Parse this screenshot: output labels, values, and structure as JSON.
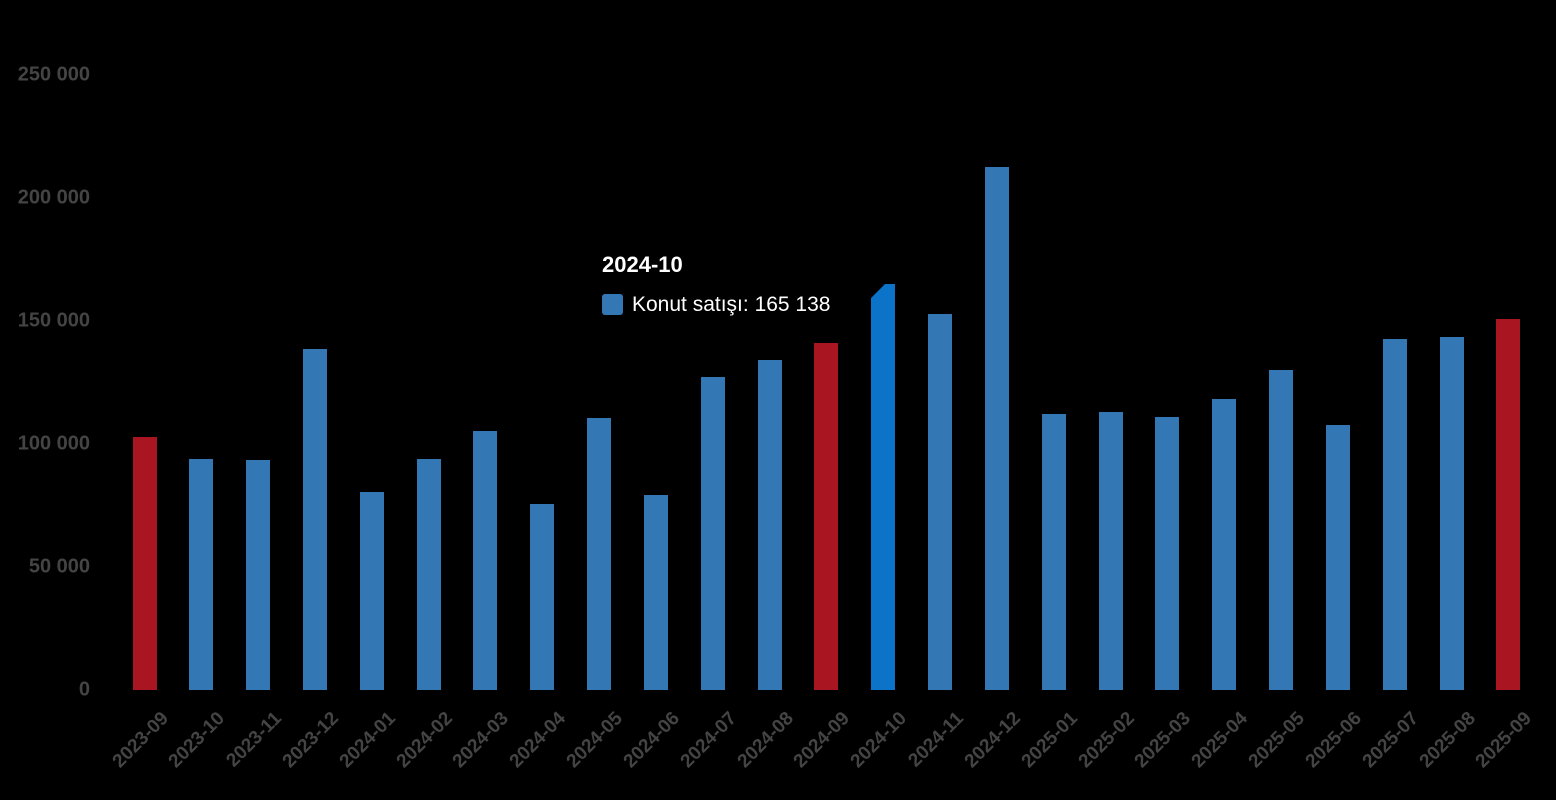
{
  "chart_data": {
    "type": "bar",
    "title": "",
    "xlabel": "",
    "ylabel": "",
    "categories": [
      "2023-09",
      "2023-10",
      "2023-11",
      "2023-12",
      "2024-01",
      "2024-02",
      "2024-03",
      "2024-04",
      "2024-05",
      "2024-06",
      "2024-07",
      "2024-08",
      "2024-09",
      "2024-10",
      "2024-11",
      "2024-12",
      "2025-01",
      "2025-02",
      "2025-03",
      "2025-04",
      "2025-05",
      "2025-06",
      "2025-07",
      "2025-08",
      "2025-09"
    ],
    "series": [
      {
        "name": "Konut satışı",
        "values": [
          102656,
          93761,
          93514,
          138577,
          80308,
          93902,
          105476,
          75569,
          110588,
          79313,
          127088,
          134155,
          140919,
          165138,
          153014,
          212637,
          112173,
          112818,
          110795,
          118359,
          130025,
          107723,
          142858,
          143319,
          150657
        ]
      }
    ],
    "y_axis": {
      "range": [
        0,
        250000
      ],
      "ticks": [
        {
          "value": 0,
          "label": "0"
        },
        {
          "value": 50000,
          "label": "50 000"
        },
        {
          "value": 100000,
          "label": "100 000"
        },
        {
          "value": 150000,
          "label": "150 000"
        },
        {
          "value": 200000,
          "label": "200 000"
        },
        {
          "value": 250000,
          "label": "250 000"
        }
      ]
    },
    "x_axis": {
      "label_rotation": -45
    },
    "highlight": {
      "red_categories": [
        "2023-09",
        "2024-09",
        "2025-09"
      ],
      "hovered_category": "2024-10"
    },
    "colors": {
      "bar": "#3378b5",
      "bar_hover": "#0b74c8",
      "bar_highlight": "#a91520",
      "axis_label": "#444444",
      "tooltip_text": "#ffffff",
      "background": "#000000"
    },
    "grid": false,
    "legend_position": "none"
  },
  "tooltip": {
    "title": "2024-10",
    "series_label": "Konut satışı",
    "value": "165 138",
    "text": "Konut satışı: 165 138"
  }
}
